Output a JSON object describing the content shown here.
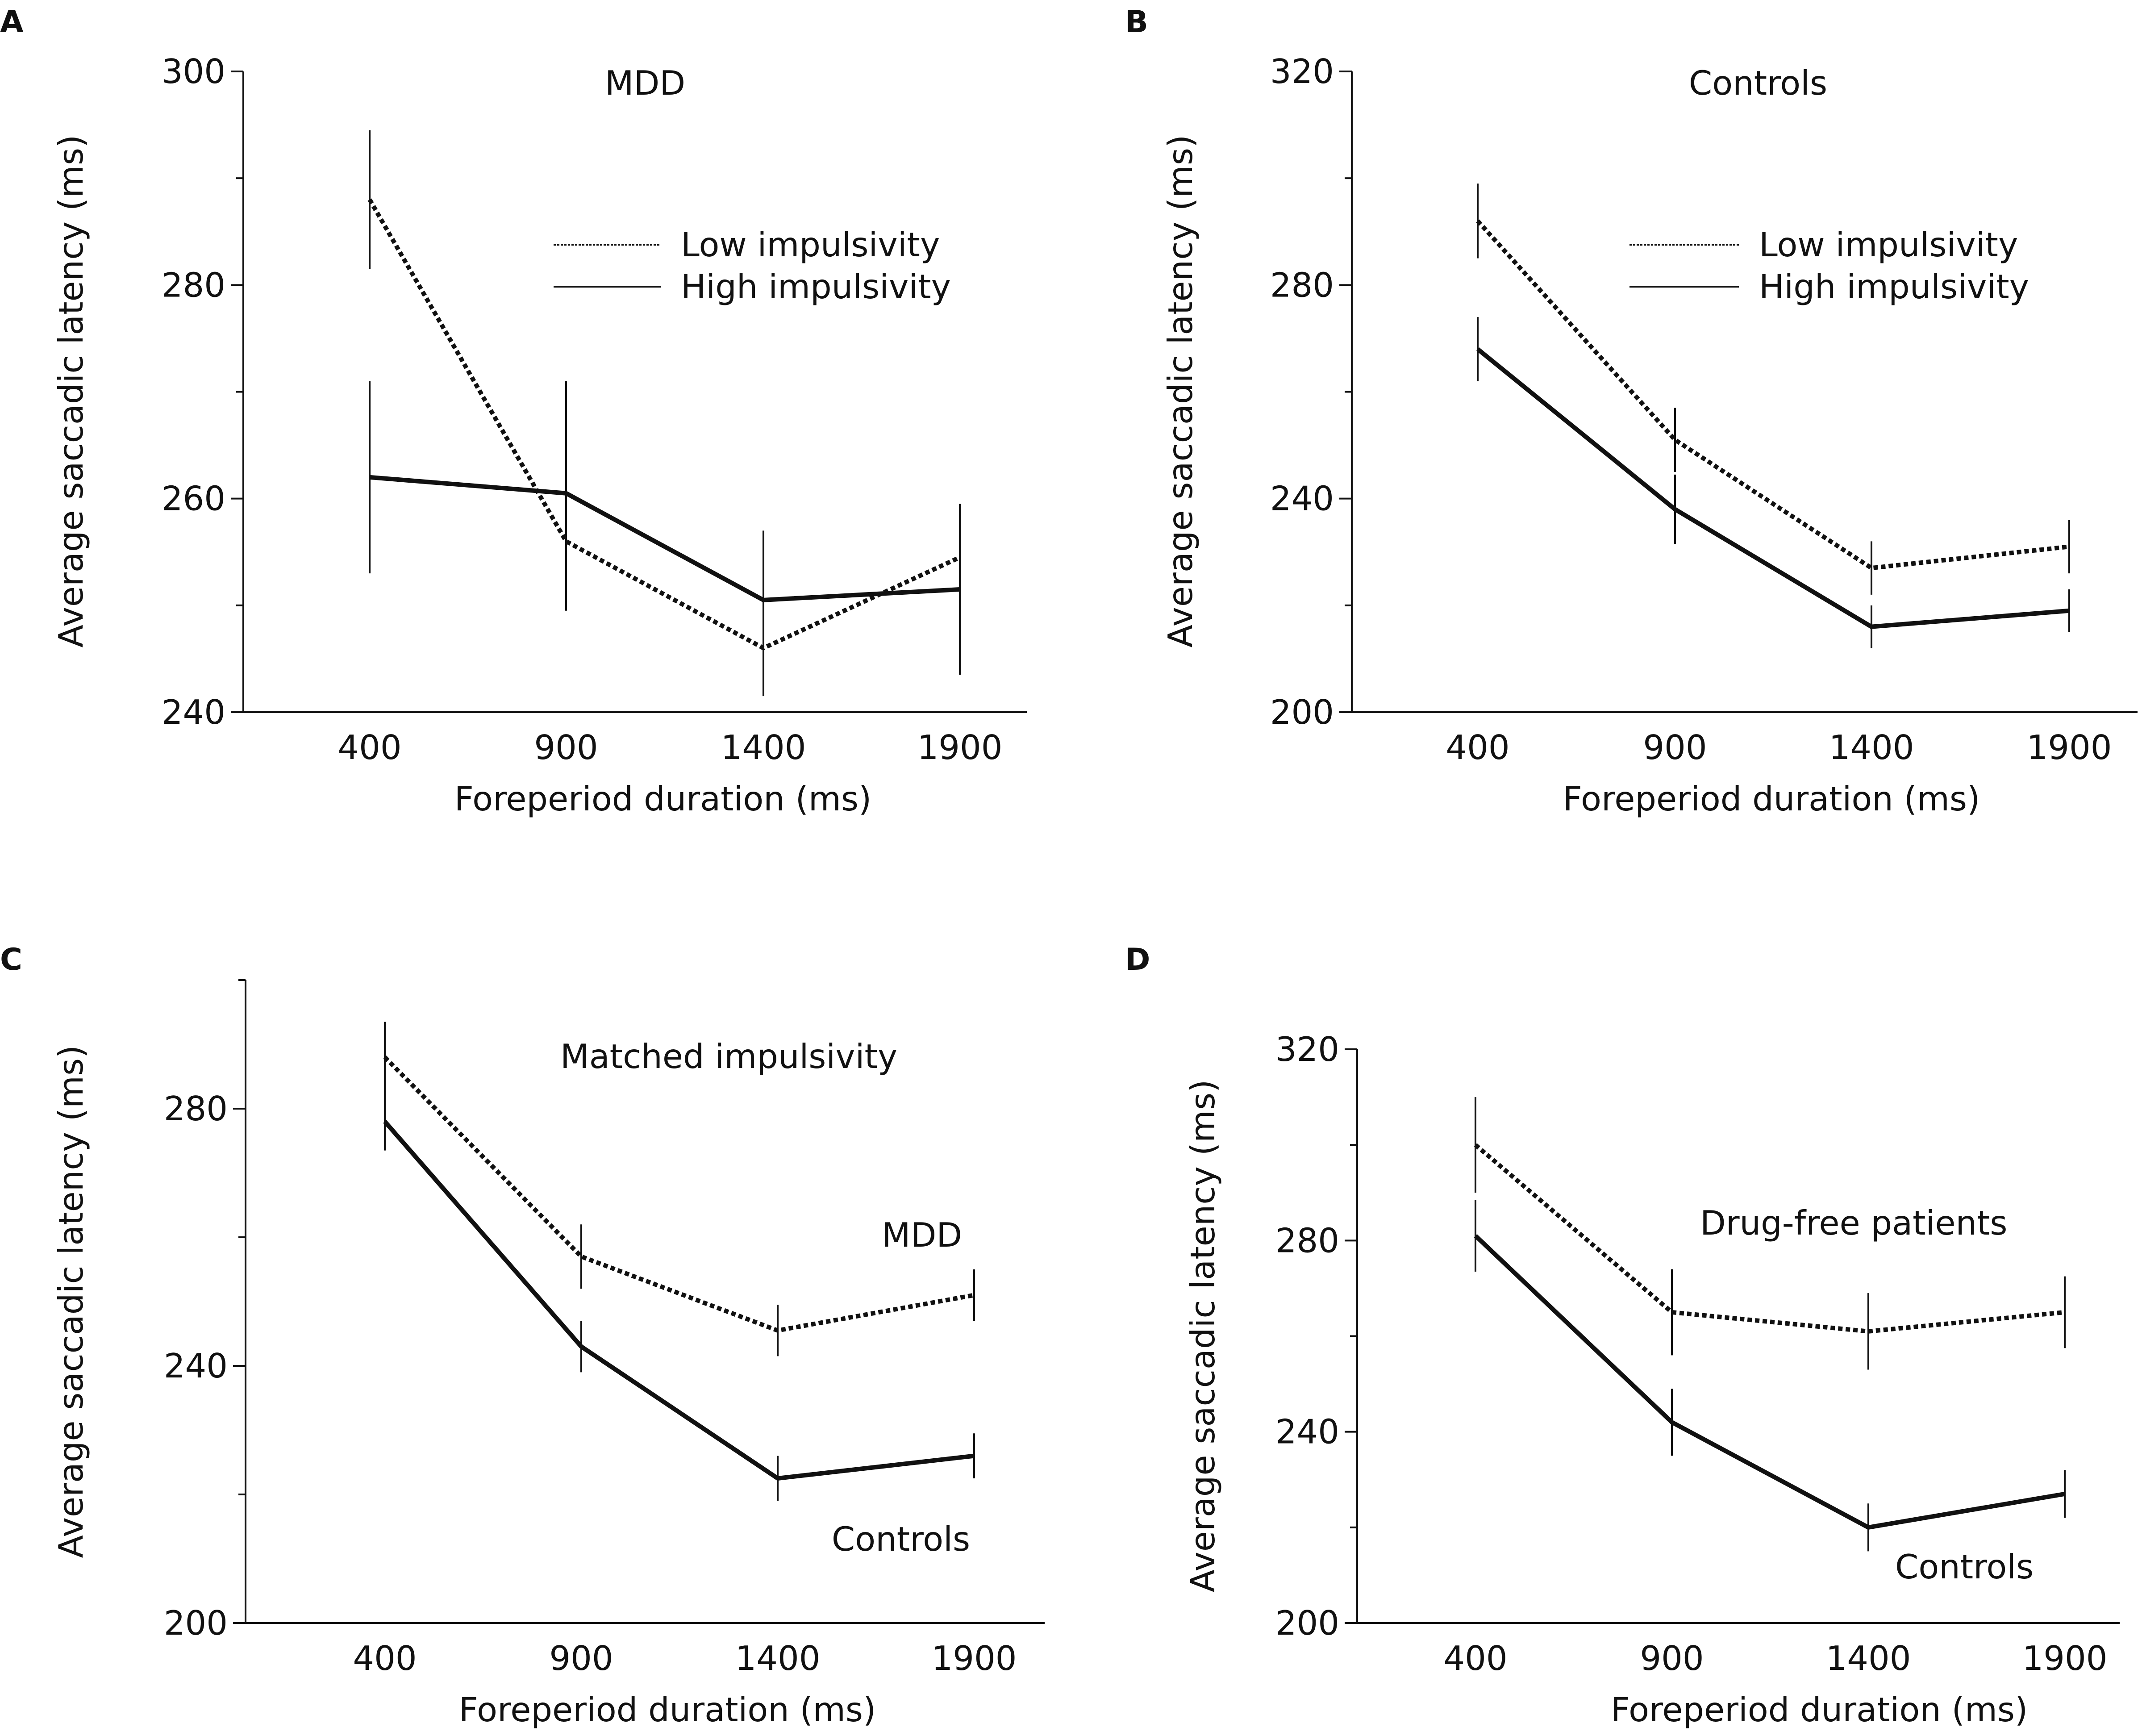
{
  "chart_data": [
    {
      "panel": "A",
      "type": "line",
      "title": "MDD",
      "xlabel": "Foreperiod duration (ms)",
      "ylabel": "Average saccadic latency (ms)",
      "x": [
        400,
        900,
        1400,
        1900
      ],
      "ylim": [
        240,
        300
      ],
      "yticks": [
        240,
        260,
        280,
        300
      ],
      "series": [
        {
          "name": "Low impulsivity",
          "style": "dotted",
          "values": [
            288,
            256,
            246,
            254.5
          ],
          "errors": [
            6.5,
            6.5,
            4.5,
            5
          ]
        },
        {
          "name": "High impulsivity",
          "style": "solid",
          "values": [
            262,
            260.5,
            250.5,
            251.5
          ],
          "errors": [
            9,
            10.5,
            6.5,
            8
          ]
        }
      ],
      "legend": [
        "Low impulsivity",
        "High impulsivity"
      ],
      "annotations": []
    },
    {
      "panel": "B",
      "type": "line",
      "title": "Controls",
      "xlabel": "Foreperiod duration (ms)",
      "ylabel": "Average saccadic latency (ms)",
      "x": [
        400,
        900,
        1400,
        1900
      ],
      "ylim": [
        200,
        320
      ],
      "yticks": [
        200,
        240,
        280,
        320
      ],
      "series": [
        {
          "name": "Low impulsivity",
          "style": "dotted",
          "values": [
            292,
            251,
            227,
            231
          ],
          "errors": [
            7,
            6,
            5,
            5
          ]
        },
        {
          "name": "High impulsivity",
          "style": "solid",
          "values": [
            268,
            238,
            216,
            219
          ],
          "errors": [
            6,
            6.5,
            4,
            4
          ]
        }
      ],
      "legend": [
        "Low impulsivity",
        "High impulsivity"
      ],
      "annotations": []
    },
    {
      "panel": "C",
      "type": "line",
      "title": "Matched impulsivity",
      "xlabel": "Foreperiod duration (ms)",
      "ylabel": "Average saccadic latency (ms)",
      "x": [
        400,
        900,
        1400,
        1900
      ],
      "ylim": [
        200,
        300
      ],
      "yticks": [
        200,
        240,
        280
      ],
      "series": [
        {
          "name": "MDD",
          "style": "dotted",
          "values": [
            288,
            257,
            245.5,
            251
          ],
          "errors": [
            5.5,
            5,
            4,
            4
          ]
        },
        {
          "name": "Controls",
          "style": "solid",
          "values": [
            278,
            243,
            222.5,
            226
          ],
          "errors": [
            4.5,
            4,
            3.5,
            3.5
          ]
        }
      ],
      "legend": [],
      "annotations": [
        "MDD",
        "Controls"
      ]
    },
    {
      "panel": "D",
      "type": "line",
      "title": "Drug-free patients",
      "xlabel": "Foreperiod duration (ms)",
      "ylabel": "Average saccadic latency (ms)",
      "x": [
        400,
        900,
        1400,
        1900
      ],
      "ylim": [
        200,
        320
      ],
      "yticks": [
        200,
        240,
        280,
        320
      ],
      "series": [
        {
          "name": "Drug-free patients",
          "style": "dotted",
          "values": [
            300,
            265,
            261,
            265
          ],
          "errors": [
            10,
            9,
            8,
            7.5
          ]
        },
        {
          "name": "Controls",
          "style": "solid",
          "values": [
            281,
            242,
            220,
            227
          ],
          "errors": [
            7.5,
            7,
            5,
            5
          ]
        }
      ],
      "legend": [],
      "annotations": [
        "Controls"
      ]
    }
  ]
}
